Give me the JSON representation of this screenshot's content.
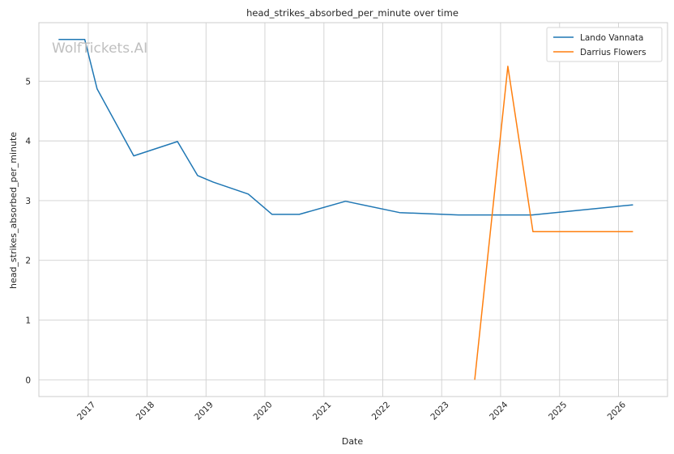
{
  "chart_data": {
    "type": "line",
    "title": "head_strikes_absorbed_per_minute over time",
    "xlabel": "Date",
    "ylabel": "head_strikes_absorbed_per_minute",
    "watermark": "WolfTickets.AI",
    "xlim": [
      "2016-03-01",
      "2026-11-01"
    ],
    "ylim": [
      -0.28,
      5.98
    ],
    "x_ticks": [
      "2017",
      "2018",
      "2019",
      "2020",
      "2021",
      "2022",
      "2023",
      "2024",
      "2025",
      "2026"
    ],
    "y_ticks": [
      0,
      1,
      2,
      3,
      4,
      5
    ],
    "grid": true,
    "legend": "top-right",
    "series": [
      {
        "name": "Lando Vannata",
        "color": "#1f77b4",
        "points": [
          [
            "2016-07-01",
            5.7
          ],
          [
            "2016-12-10",
            5.7
          ],
          [
            "2017-02-25",
            4.87
          ],
          [
            "2017-10-10",
            3.75
          ],
          [
            "2018-07-08",
            3.99
          ],
          [
            "2018-11-10",
            3.42
          ],
          [
            "2019-02-15",
            3.31
          ],
          [
            "2019-09-20",
            3.11
          ],
          [
            "2020-02-15",
            2.77
          ],
          [
            "2020-08-01",
            2.77
          ],
          [
            "2021-05-15",
            2.99
          ],
          [
            "2022-04-15",
            2.8
          ],
          [
            "2023-04-15",
            2.76
          ],
          [
            "2024-07-15",
            2.76
          ],
          [
            "2026-04-01",
            2.93
          ]
        ]
      },
      {
        "name": "Darrius Flowers",
        "color": "#ff7f0e",
        "points": [
          [
            "2023-07-25",
            0.0
          ],
          [
            "2024-02-15",
            5.25
          ],
          [
            "2024-07-20",
            2.48
          ],
          [
            "2026-04-01",
            2.48
          ]
        ]
      }
    ]
  }
}
